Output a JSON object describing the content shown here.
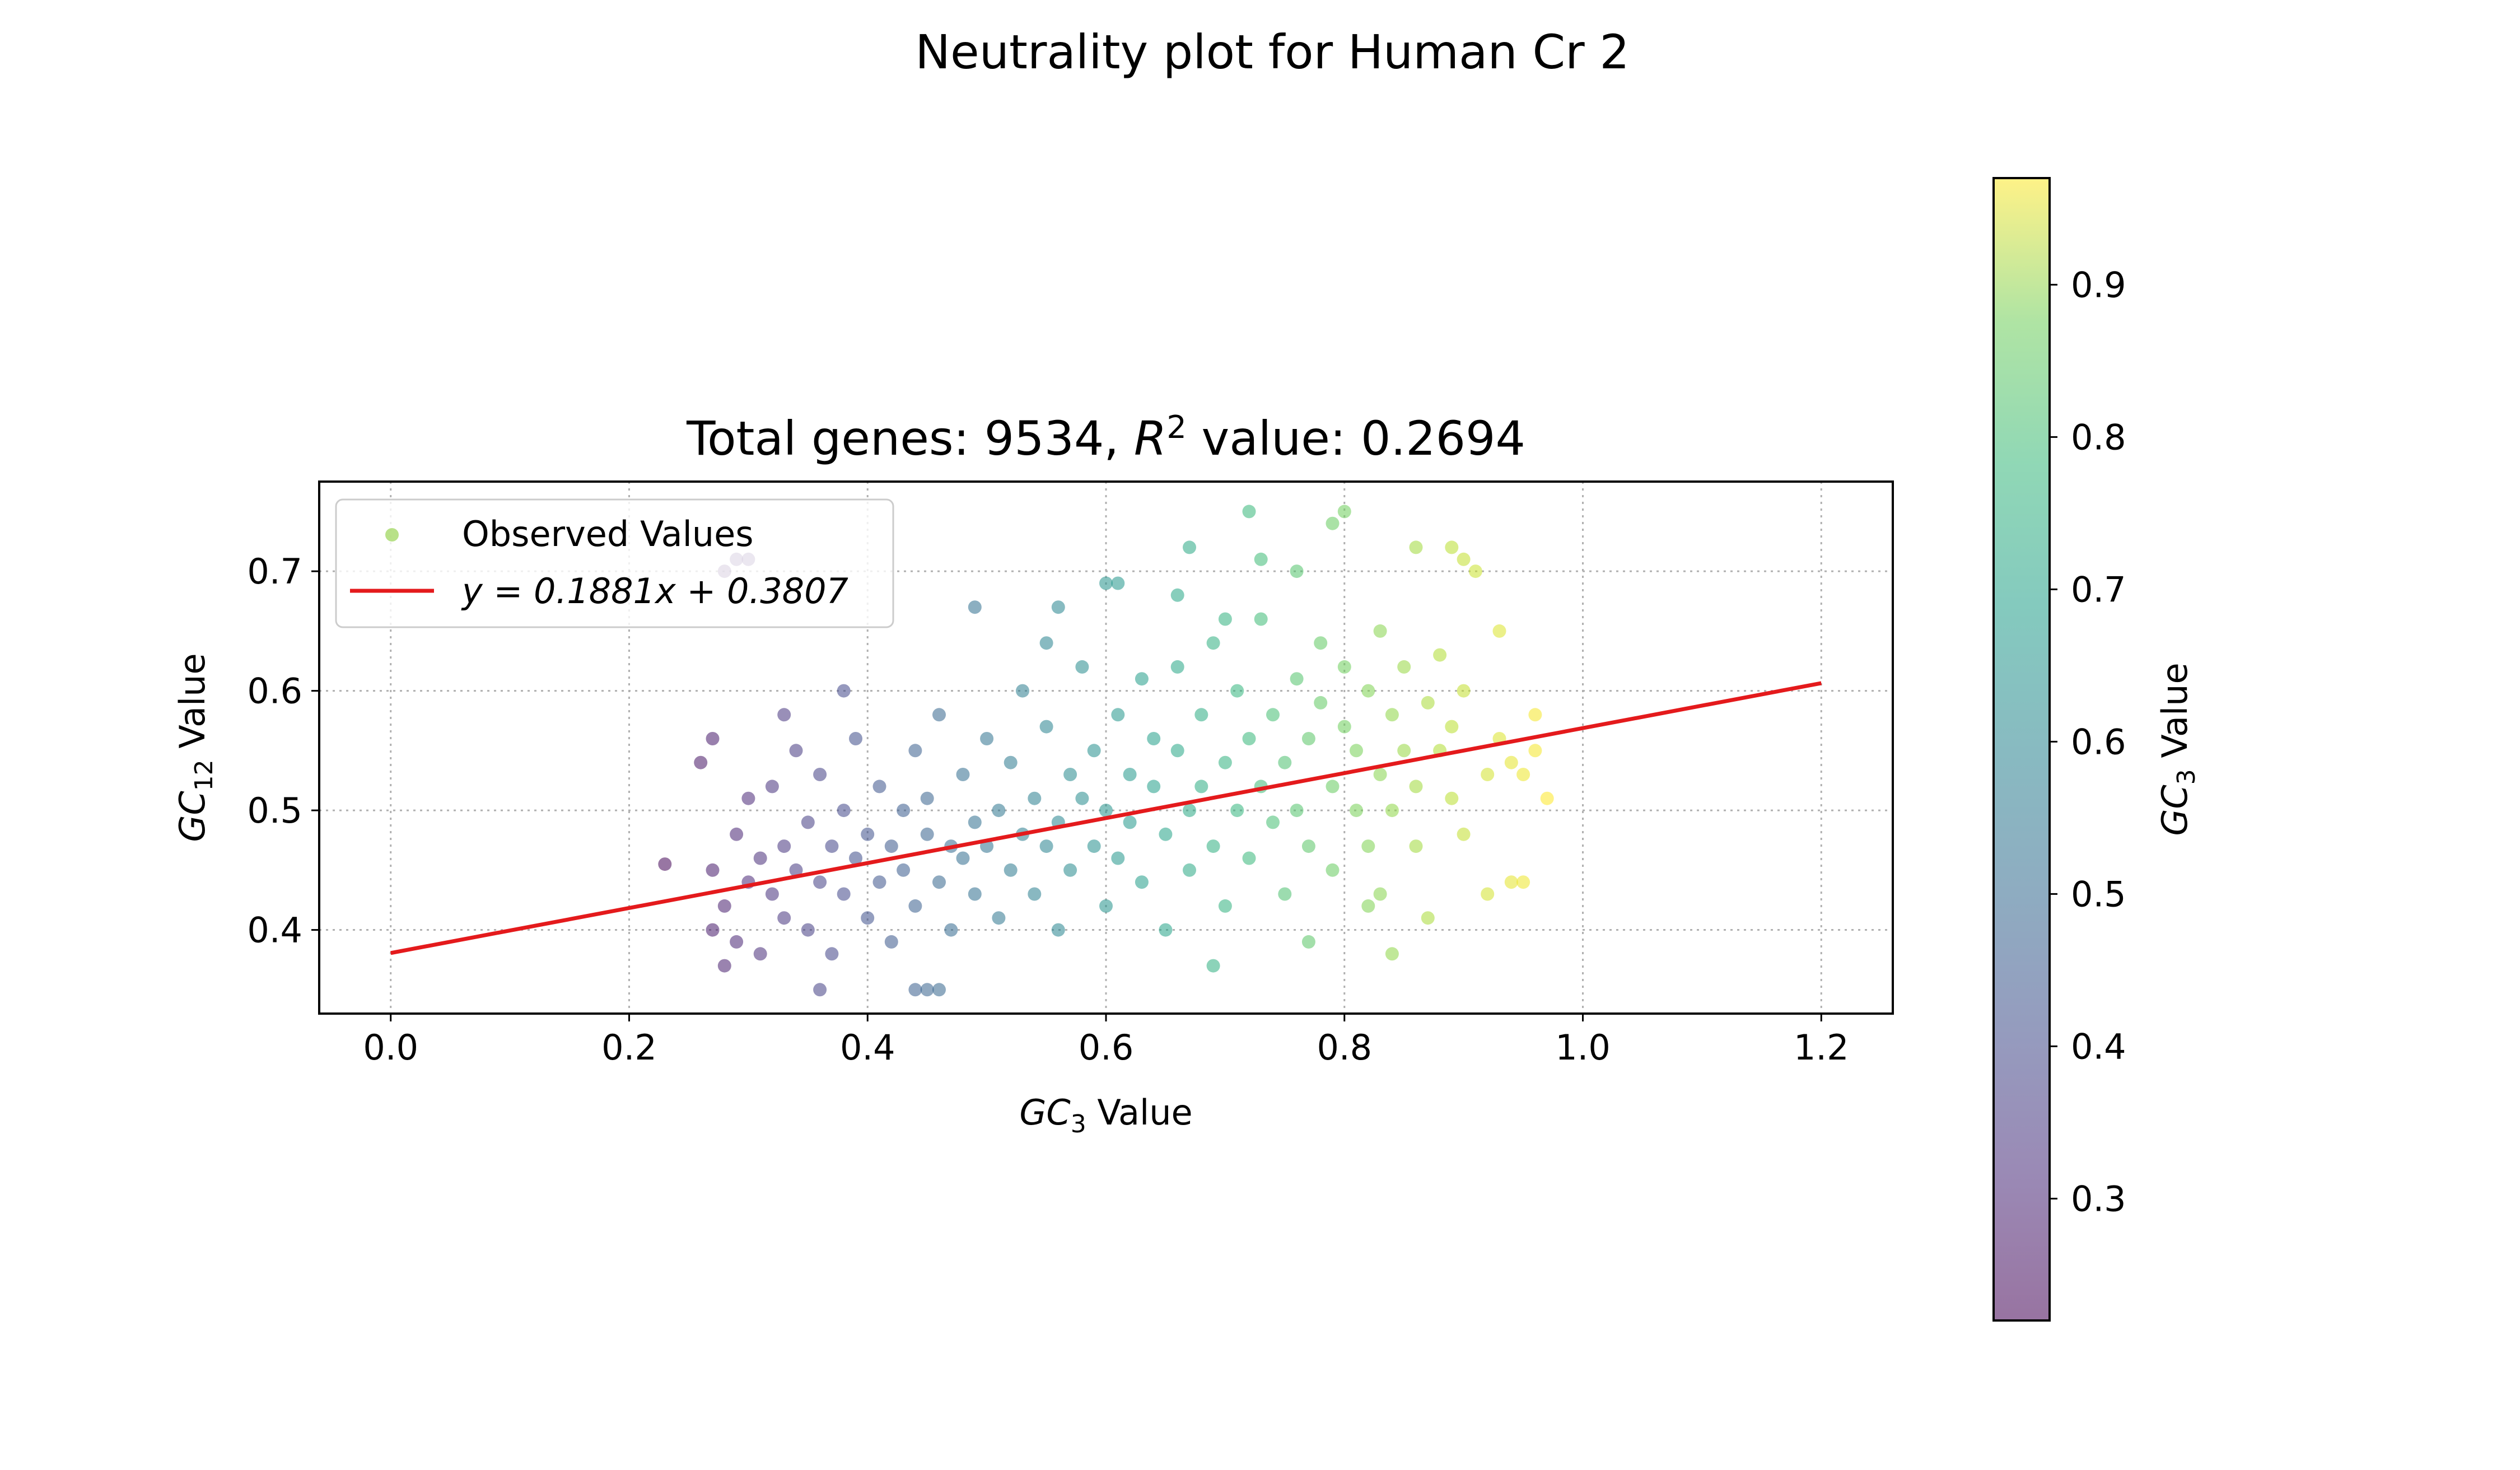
{
  "figure_title": "Neutrality plot for Human Cr 2",
  "chart_data": {
    "type": "scatter",
    "title": "Total genes: 9534, R² value: 0.2694",
    "title_parts": {
      "before": "Total genes: 9534, ",
      "r": "R",
      "sup": "2",
      "after": " value: 0.2694"
    },
    "xlabel": {
      "main": "GC",
      "sub": "3",
      "rest": " Value"
    },
    "ylabel": {
      "main": "GC",
      "sub": "12",
      "rest": " Value"
    },
    "xlim": [
      -0.06,
      1.26
    ],
    "ylim": [
      0.33,
      0.775
    ],
    "x_ticks": [
      0.0,
      0.2,
      0.4,
      0.6,
      0.8,
      1.0,
      1.2
    ],
    "x_tick_labels": [
      "0.0",
      "0.2",
      "0.4",
      "0.6",
      "0.8",
      "1.0",
      "1.2"
    ],
    "y_ticks": [
      0.4,
      0.5,
      0.6,
      0.7
    ],
    "y_tick_labels": [
      "0.4",
      "0.5",
      "0.6",
      "0.7"
    ],
    "grid": true,
    "legend_placement": "upper-left",
    "legend": {
      "scatter_label": "Observed Values",
      "line_label": "y = 0.1881x + 0.3807"
    },
    "fit_line": {
      "slope": 0.1881,
      "intercept": 0.3807,
      "x_range": [
        0.0,
        1.2
      ],
      "color": "#e41a1c"
    },
    "total_genes": 9534,
    "r_squared": 0.2694,
    "series": [
      {
        "name": "Observed Values",
        "points": [
          [
            0.27,
            0.4
          ],
          [
            0.27,
            0.45
          ],
          [
            0.28,
            0.37
          ],
          [
            0.28,
            0.42
          ],
          [
            0.29,
            0.48
          ],
          [
            0.29,
            0.39
          ],
          [
            0.3,
            0.44
          ],
          [
            0.3,
            0.51
          ],
          [
            0.31,
            0.46
          ],
          [
            0.31,
            0.38
          ],
          [
            0.32,
            0.43
          ],
          [
            0.32,
            0.52
          ],
          [
            0.33,
            0.47
          ],
          [
            0.33,
            0.41
          ],
          [
            0.34,
            0.55
          ],
          [
            0.34,
            0.45
          ],
          [
            0.35,
            0.49
          ],
          [
            0.35,
            0.4
          ],
          [
            0.36,
            0.44
          ],
          [
            0.36,
            0.53
          ],
          [
            0.37,
            0.47
          ],
          [
            0.37,
            0.38
          ],
          [
            0.38,
            0.5
          ],
          [
            0.38,
            0.43
          ],
          [
            0.39,
            0.46
          ],
          [
            0.39,
            0.56
          ],
          [
            0.4,
            0.41
          ],
          [
            0.4,
            0.48
          ],
          [
            0.41,
            0.52
          ],
          [
            0.41,
            0.44
          ],
          [
            0.42,
            0.47
          ],
          [
            0.42,
            0.39
          ],
          [
            0.43,
            0.5
          ],
          [
            0.43,
            0.45
          ],
          [
            0.44,
            0.55
          ],
          [
            0.44,
            0.42
          ],
          [
            0.45,
            0.48
          ],
          [
            0.45,
            0.51
          ],
          [
            0.46,
            0.44
          ],
          [
            0.46,
            0.58
          ],
          [
            0.47,
            0.47
          ],
          [
            0.47,
            0.4
          ],
          [
            0.48,
            0.53
          ],
          [
            0.48,
            0.46
          ],
          [
            0.49,
            0.49
          ],
          [
            0.49,
            0.43
          ],
          [
            0.5,
            0.56
          ],
          [
            0.5,
            0.47
          ],
          [
            0.51,
            0.5
          ],
          [
            0.51,
            0.41
          ],
          [
            0.52,
            0.45
          ],
          [
            0.52,
            0.54
          ],
          [
            0.53,
            0.48
          ],
          [
            0.53,
            0.6
          ],
          [
            0.54,
            0.43
          ],
          [
            0.54,
            0.51
          ],
          [
            0.55,
            0.47
          ],
          [
            0.55,
            0.57
          ],
          [
            0.56,
            0.49
          ],
          [
            0.56,
            0.4
          ],
          [
            0.57,
            0.53
          ],
          [
            0.57,
            0.45
          ],
          [
            0.58,
            0.51
          ],
          [
            0.58,
            0.62
          ],
          [
            0.59,
            0.47
          ],
          [
            0.59,
            0.55
          ],
          [
            0.6,
            0.5
          ],
          [
            0.6,
            0.42
          ],
          [
            0.61,
            0.58
          ],
          [
            0.61,
            0.46
          ],
          [
            0.62,
            0.53
          ],
          [
            0.62,
            0.49
          ],
          [
            0.63,
            0.61
          ],
          [
            0.63,
            0.44
          ],
          [
            0.64,
            0.52
          ],
          [
            0.64,
            0.56
          ],
          [
            0.65,
            0.48
          ],
          [
            0.65,
            0.4
          ],
          [
            0.66,
            0.55
          ],
          [
            0.66,
            0.62
          ],
          [
            0.67,
            0.5
          ],
          [
            0.67,
            0.45
          ],
          [
            0.68,
            0.58
          ],
          [
            0.68,
            0.52
          ],
          [
            0.69,
            0.47
          ],
          [
            0.69,
            0.64
          ],
          [
            0.7,
            0.54
          ],
          [
            0.7,
            0.42
          ],
          [
            0.71,
            0.5
          ],
          [
            0.71,
            0.6
          ],
          [
            0.72,
            0.56
          ],
          [
            0.72,
            0.46
          ],
          [
            0.73,
            0.52
          ],
          [
            0.73,
            0.66
          ],
          [
            0.74,
            0.49
          ],
          [
            0.74,
            0.58
          ],
          [
            0.75,
            0.54
          ],
          [
            0.75,
            0.43
          ],
          [
            0.76,
            0.61
          ],
          [
            0.76,
            0.5
          ],
          [
            0.77,
            0.56
          ],
          [
            0.77,
            0.47
          ],
          [
            0.78,
            0.59
          ],
          [
            0.78,
            0.64
          ],
          [
            0.79,
            0.52
          ],
          [
            0.79,
            0.45
          ],
          [
            0.8,
            0.57
          ],
          [
            0.8,
            0.62
          ],
          [
            0.81,
            0.5
          ],
          [
            0.81,
            0.55
          ],
          [
            0.82,
            0.6
          ],
          [
            0.82,
            0.47
          ],
          [
            0.83,
            0.53
          ],
          [
            0.83,
            0.65
          ],
          [
            0.84,
            0.58
          ],
          [
            0.84,
            0.5
          ],
          [
            0.85,
            0.55
          ],
          [
            0.85,
            0.62
          ],
          [
            0.86,
            0.52
          ],
          [
            0.86,
            0.47
          ],
          [
            0.87,
            0.59
          ],
          [
            0.87,
            0.41
          ],
          [
            0.88,
            0.55
          ],
          [
            0.88,
            0.63
          ],
          [
            0.89,
            0.51
          ],
          [
            0.89,
            0.57
          ],
          [
            0.9,
            0.6
          ],
          [
            0.9,
            0.48
          ],
          [
            0.91,
            0.7
          ],
          [
            0.92,
            0.53
          ],
          [
            0.92,
            0.43
          ],
          [
            0.93,
            0.56
          ],
          [
            0.94,
            0.44
          ],
          [
            0.95,
            0.53
          ],
          [
            0.96,
            0.58
          ],
          [
            0.97,
            0.51
          ],
          [
            0.23,
            0.455
          ],
          [
            0.26,
            0.54
          ],
          [
            0.27,
            0.56
          ],
          [
            0.28,
            0.7
          ],
          [
            0.29,
            0.71
          ],
          [
            0.3,
            0.71
          ],
          [
            0.33,
            0.58
          ],
          [
            0.36,
            0.35
          ],
          [
            0.38,
            0.6
          ],
          [
            0.44,
            0.35
          ],
          [
            0.45,
            0.35
          ],
          [
            0.46,
            0.35
          ],
          [
            0.49,
            0.67
          ],
          [
            0.55,
            0.64
          ],
          [
            0.56,
            0.67
          ],
          [
            0.6,
            0.69
          ],
          [
            0.61,
            0.69
          ],
          [
            0.66,
            0.68
          ],
          [
            0.67,
            0.72
          ],
          [
            0.69,
            0.37
          ],
          [
            0.7,
            0.66
          ],
          [
            0.72,
            0.75
          ],
          [
            0.73,
            0.71
          ],
          [
            0.76,
            0.7
          ],
          [
            0.77,
            0.39
          ],
          [
            0.79,
            0.74
          ],
          [
            0.8,
            0.75
          ],
          [
            0.82,
            0.42
          ],
          [
            0.83,
            0.43
          ],
          [
            0.84,
            0.38
          ],
          [
            0.86,
            0.72
          ],
          [
            0.89,
            0.72
          ],
          [
            0.9,
            0.71
          ],
          [
            0.93,
            0.65
          ],
          [
            0.94,
            0.54
          ],
          [
            0.95,
            0.44
          ],
          [
            0.96,
            0.55
          ]
        ]
      }
    ],
    "colorbar": {
      "label": {
        "main": "GC",
        "sub": "3",
        "rest": " Value"
      },
      "range": [
        0.22,
        0.97
      ],
      "ticks": [
        0.3,
        0.4,
        0.5,
        0.6,
        0.7,
        0.8,
        0.9
      ],
      "tick_labels": [
        "0.3",
        "0.4",
        "0.5",
        "0.6",
        "0.7",
        "0.8",
        "0.9"
      ],
      "colormap": "viridis",
      "alpha": 0.55
    }
  }
}
